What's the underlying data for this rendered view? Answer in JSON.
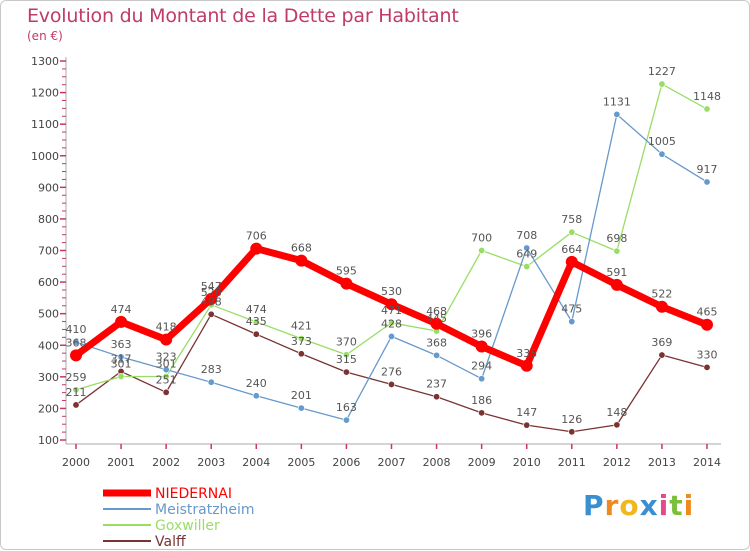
{
  "title": "Evolution du Montant de la Dette par Habitant",
  "subtitle": "(en €)",
  "brand": "Proxiti",
  "chart_data": {
    "type": "line",
    "title": "Evolution du Montant de la Dette par Habitant",
    "subtitle": "(en €)",
    "xlabel": "",
    "ylabel": "",
    "ylim": [
      100,
      1300
    ],
    "yticks": [
      100,
      200,
      300,
      400,
      500,
      600,
      700,
      800,
      900,
      1000,
      1100,
      1200,
      1300
    ],
    "grid": false,
    "legend_position": "bottom-left",
    "categories": [
      "2000",
      "2001",
      "2002",
      "2003",
      "2004",
      "2005",
      "2006",
      "2007",
      "2008",
      "2009",
      "2010",
      "2011",
      "2012",
      "2013",
      "2014"
    ],
    "series": [
      {
        "name": "NIEDERNAI",
        "color": "#ff0000",
        "values": [
          368,
          474,
          418,
          547,
          706,
          668,
          595,
          530,
          468,
          396,
          335,
          664,
          591,
          522,
          465
        ]
      },
      {
        "name": "Meistratzheim",
        "color": "#6699cc",
        "values": [
          410,
          363,
          323,
          283,
          240,
          201,
          163,
          428,
          368,
          294,
          708,
          475,
          1131,
          1005,
          917
        ]
      },
      {
        "name": "Goxwiller",
        "color": "#99dd66",
        "values": [
          259,
          301,
          301,
          528,
          474,
          421,
          370,
          471,
          445,
          700,
          649,
          758,
          698,
          1227,
          1148
        ]
      },
      {
        "name": "Valff",
        "color": "#7a3333",
        "values": [
          211,
          317,
          251,
          498,
          435,
          373,
          315,
          276,
          237,
          186,
          147,
          126,
          148,
          369,
          330
        ]
      }
    ]
  }
}
